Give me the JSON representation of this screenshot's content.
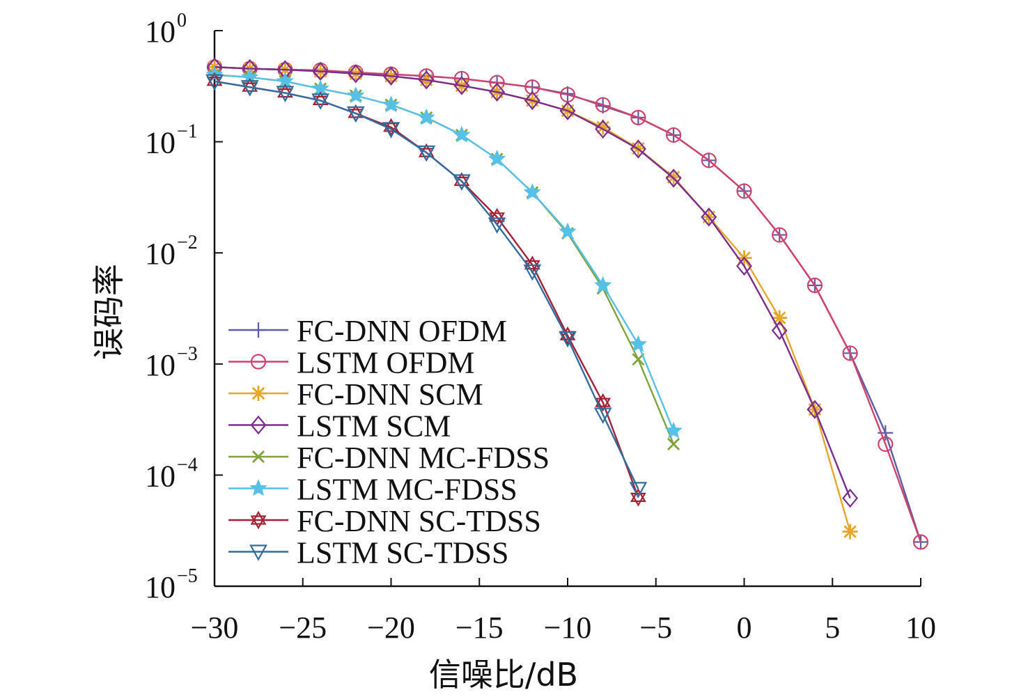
{
  "chart_data": {
    "type": "line",
    "xlabel": "信噪比/dB",
    "ylabel": "误码率",
    "xlim": [
      -30,
      10
    ],
    "ylim": [
      1e-05,
      1
    ],
    "yscale": "log",
    "grid": false,
    "legend_position": "lower-left",
    "x_ticks": [
      -30,
      -25,
      -20,
      -15,
      -10,
      -5,
      0,
      5,
      10
    ],
    "x_tick_labels": [
      "−30",
      "−25",
      "−20",
      "−15",
      "−10",
      "−5",
      "0",
      "5",
      "10"
    ],
    "y_ticks": [
      {
        "value": 1,
        "base": "10",
        "exp": "0"
      },
      {
        "value": 0.1,
        "base": "10",
        "exp": "−1"
      },
      {
        "value": 0.01,
        "base": "10",
        "exp": "−2"
      },
      {
        "value": 0.001,
        "base": "10",
        "exp": "−3"
      },
      {
        "value": 0.0001,
        "base": "10",
        "exp": "−4"
      },
      {
        "value": 1e-05,
        "base": "10",
        "exp": "−5"
      }
    ],
    "series": [
      {
        "name": "FC-DNN OFDM",
        "color": "#5b5ea6",
        "marker": "plus",
        "x": [
          -30,
          -28,
          -26,
          -24,
          -22,
          -20,
          -18,
          -16,
          -14,
          -12,
          -10,
          -8,
          -6,
          -4,
          -2,
          0,
          2,
          4,
          6,
          8,
          10
        ],
        "y": [
          0.47,
          0.455,
          0.445,
          0.44,
          0.42,
          0.405,
          0.39,
          0.37,
          0.34,
          0.31,
          0.27,
          0.21,
          0.165,
          0.115,
          0.068,
          0.036,
          0.0145,
          0.0051,
          0.00125,
          0.00024,
          2.5e-05
        ]
      },
      {
        "name": "LSTM OFDM",
        "color": "#d0416e",
        "marker": "circle",
        "x": [
          -30,
          -28,
          -26,
          -24,
          -22,
          -20,
          -18,
          -16,
          -14,
          -12,
          -10,
          -8,
          -6,
          -4,
          -2,
          0,
          2,
          4,
          6,
          8,
          10
        ],
        "y": [
          0.47,
          0.455,
          0.445,
          0.44,
          0.42,
          0.405,
          0.39,
          0.37,
          0.34,
          0.31,
          0.265,
          0.215,
          0.165,
          0.115,
          0.068,
          0.036,
          0.0145,
          0.0051,
          0.00125,
          0.00019,
          2.5e-05
        ]
      },
      {
        "name": "FC-DNN SCM",
        "color": "#e6a62a",
        "marker": "asterisk",
        "x": [
          -30,
          -28,
          -26,
          -24,
          -22,
          -20,
          -18,
          -16,
          -14,
          -12,
          -10,
          -8,
          -6,
          -4,
          -2,
          0,
          2,
          4,
          6
        ],
        "y": [
          0.47,
          0.455,
          0.445,
          0.43,
          0.41,
          0.39,
          0.36,
          0.32,
          0.28,
          0.235,
          0.19,
          0.135,
          0.087,
          0.048,
          0.021,
          0.009,
          0.0026,
          0.00039,
          3.1e-05
        ]
      },
      {
        "name": "LSTM SCM",
        "color": "#7b2d8e",
        "marker": "diamond",
        "x": [
          -30,
          -28,
          -26,
          -24,
          -22,
          -20,
          -18,
          -16,
          -14,
          -12,
          -10,
          -8,
          -6,
          -4,
          -2,
          0,
          2,
          4,
          6
        ],
        "y": [
          0.47,
          0.455,
          0.445,
          0.43,
          0.41,
          0.39,
          0.36,
          0.32,
          0.28,
          0.235,
          0.19,
          0.13,
          0.086,
          0.047,
          0.021,
          0.0076,
          0.002,
          0.00039,
          6.2e-05
        ]
      },
      {
        "name": "FC-DNN MC-FDSS",
        "color": "#7fa33a",
        "marker": "cross",
        "x": [
          -30,
          -28,
          -26,
          -24,
          -22,
          -20,
          -18,
          -16,
          -14,
          -12,
          -10,
          -8,
          -6,
          -4
        ],
        "y": [
          0.4,
          0.38,
          0.35,
          0.3,
          0.26,
          0.215,
          0.165,
          0.115,
          0.07,
          0.035,
          0.015,
          0.0048,
          0.0011,
          0.00019
        ]
      },
      {
        "name": "LSTM MC-FDSS",
        "color": "#56c1e6",
        "marker": "star",
        "x": [
          -30,
          -28,
          -26,
          -24,
          -22,
          -20,
          -18,
          -16,
          -14,
          -12,
          -10,
          -8,
          -6,
          -4
        ],
        "y": [
          0.4,
          0.38,
          0.35,
          0.3,
          0.26,
          0.215,
          0.165,
          0.115,
          0.07,
          0.035,
          0.0155,
          0.0051,
          0.0015,
          0.00025
        ]
      },
      {
        "name": "FC-DNN SC-TDSS",
        "color": "#a32035",
        "marker": "hexagram",
        "x": [
          -30,
          -28,
          -26,
          -24,
          -22,
          -20,
          -18,
          -16,
          -14,
          -12,
          -10,
          -8,
          -6
        ],
        "y": [
          0.35,
          0.31,
          0.275,
          0.235,
          0.18,
          0.135,
          0.08,
          0.044,
          0.021,
          0.0078,
          0.0018,
          0.00045,
          6.3e-05
        ]
      },
      {
        "name": "LSTM SC-TDSS",
        "color": "#2f6e9e",
        "marker": "triangle-down",
        "x": [
          -30,
          -28,
          -26,
          -24,
          -22,
          -20,
          -18,
          -16,
          -14,
          -12,
          -10,
          -8,
          -6
        ],
        "y": [
          0.35,
          0.31,
          0.275,
          0.235,
          0.18,
          0.13,
          0.08,
          0.044,
          0.018,
          0.0068,
          0.0017,
          0.00035,
          7.5e-05
        ]
      }
    ]
  }
}
